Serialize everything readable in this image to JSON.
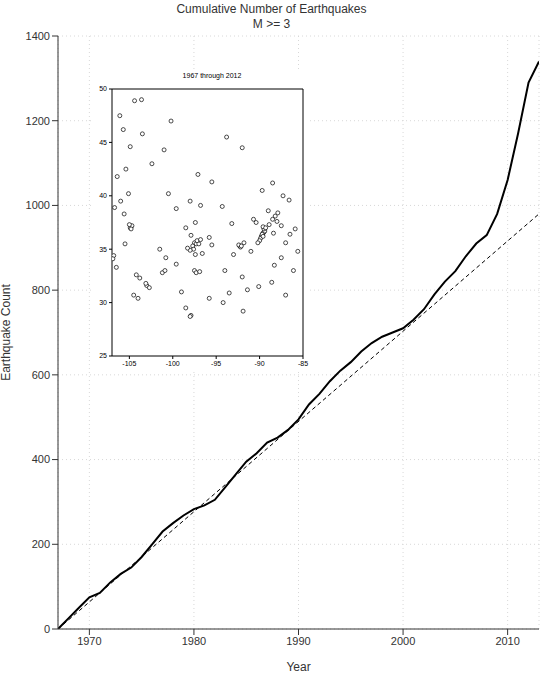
{
  "chart_data": [
    {
      "type": "line",
      "title": "Cumulative Number of Earthquakes",
      "subtitle": "M >= 3",
      "x_label": "Year",
      "y_label": "Earthquake Count",
      "xlim": [
        1967,
        2013
      ],
      "ylim": [
        0,
        1400
      ],
      "xticks": [
        1970,
        1980,
        1990,
        2000,
        2010
      ],
      "yticks": [
        0,
        200,
        400,
        600,
        800,
        1000,
        1200,
        1400
      ],
      "grid": true,
      "series": [
        {
          "color": "#000000",
          "line_style": "solid",
          "x": [
            1967,
            1968,
            1969,
            1970,
            1971,
            1972,
            1973,
            1974,
            1975,
            1976,
            1977,
            1978,
            1979,
            1980,
            1981,
            1982,
            1983,
            1984,
            1985,
            1986,
            1987,
            1988,
            1989,
            1990,
            1991,
            1992,
            1993,
            1994,
            1995,
            1996,
            1997,
            1998,
            1999,
            2000,
            2001,
            2002,
            2003,
            2004,
            2005,
            2006,
            2007,
            2008,
            2009,
            2010,
            2011,
            2012,
            2013
          ],
          "values": [
            0,
            25,
            50,
            75,
            85,
            110,
            130,
            145,
            170,
            200,
            230,
            250,
            268,
            283,
            292,
            305,
            335,
            365,
            395,
            415,
            440,
            452,
            470,
            495,
            530,
            555,
            585,
            610,
            630,
            655,
            675,
            690,
            700,
            710,
            730,
            755,
            790,
            820,
            845,
            880,
            910,
            930,
            980,
            1060,
            1170,
            1290,
            1340
          ]
        },
        {
          "color": "#000000",
          "line_style": "dashed",
          "x": [
            1967,
            2013
          ],
          "values": [
            0,
            980
          ]
        }
      ]
    },
    {
      "type": "scatter",
      "title": "1967 through 2012",
      "xlim": [
        -107,
        -85
      ],
      "ylim": [
        25,
        50
      ],
      "xticks": [
        -105,
        -100,
        -95,
        -90,
        -85
      ],
      "yticks": [
        25,
        30,
        35,
        40,
        45,
        50
      ],
      "marker": "circle",
      "color": "#000000",
      "x": [
        -89.6,
        -89.5,
        -89.7,
        -89.8,
        -89.9,
        -90.0,
        -89.4,
        -89.5,
        -89.6,
        -90.2,
        -89.7,
        -89.6,
        -89.3,
        -88.9,
        -88.5,
        -88.2,
        -87.9,
        -88.0,
        -90.4,
        -90.7,
        -89.0,
        -88.4,
        -87.5,
        -86.5,
        -87.0,
        -92.3,
        -92.2,
        -92.4,
        -92.1,
        -91.8,
        -93.0,
        -91.0,
        -97.5,
        -97.3,
        -97.0,
        -97.7,
        -97.6,
        -97.2,
        -96.8,
        -98.0,
        -98.3,
        -97.9,
        -96.6,
        -97.4,
        -95.5,
        -95.8,
        -97.5,
        -97.3,
        -96.9,
        -103.0,
        -103.1,
        -102.7,
        -101.2,
        -100.9,
        -104.5,
        -104.0,
        -98.5,
        -97.9,
        -98.0,
        -99.0,
        -95.8,
        -94.2,
        -99.6,
        -101.5,
        -100.8,
        -104.8,
        -104.9,
        -104.7,
        -104.8,
        -105.0,
        -106.8,
        -106.9,
        -106.5,
        -105.5,
        -103.8,
        -104.2,
        -106.0,
        -105.1,
        -106.7,
        -105.6,
        -106.4,
        -105.4,
        -104.9,
        -106.1,
        -105.7,
        -100.5,
        -99.6,
        -98.0,
        -96.8,
        -97.4,
        -98.5,
        -101.0,
        -102.4,
        -103.5,
        -100.2,
        -97.1,
        -95.5,
        -94.3,
        -93.2,
        -94.0,
        -92.0,
        -91.4,
        -93.5,
        -90.1,
        -88.6,
        -88.3,
        -87.5,
        -86.1,
        -85.6,
        -87.0,
        -91.9,
        -93.8,
        -88.5,
        -87.3,
        -86.6,
        -89.7,
        -92.0,
        -85.9,
        -104.4,
        -103.6
      ],
      "values": [
        36.5,
        36.6,
        36.3,
        36.2,
        36.0,
        35.8,
        36.7,
        36.9,
        37.1,
        35.6,
        36.4,
        36.2,
        37.0,
        37.3,
        37.8,
        38.1,
        38.4,
        37.6,
        37.5,
        37.8,
        38.6,
        36.5,
        37.2,
        36.4,
        35.6,
        35.3,
        35.2,
        35.4,
        35.3,
        35.6,
        34.5,
        34.8,
        35.6,
        35.5,
        35.5,
        35.3,
        35.0,
        35.8,
        35.9,
        34.9,
        35.1,
        36.3,
        34.6,
        34.5,
        35.4,
        36.1,
        33.0,
        32.8,
        32.9,
        31.6,
        31.8,
        31.4,
        32.8,
        33.0,
        30.7,
        30.4,
        29.5,
        28.8,
        28.7,
        31.0,
        30.4,
        30.0,
        33.6,
        35.0,
        34.2,
        37.1,
        37.0,
        37.2,
        36.9,
        37.3,
        34.4,
        34.1,
        33.3,
        35.5,
        32.3,
        32.6,
        39.5,
        40.2,
        38.9,
        38.3,
        41.8,
        42.5,
        44.6,
        47.5,
        46.2,
        40.2,
        38.8,
        39.5,
        39.1,
        37.5,
        37.0,
        44.3,
        43.0,
        45.8,
        47.0,
        42.0,
        41.3,
        39.0,
        37.4,
        33.0,
        32.4,
        31.2,
        30.9,
        31.5,
        31.9,
        33.5,
        34.2,
        33.0,
        34.8,
        30.7,
        29.2,
        45.5,
        41.2,
        40.0,
        39.6,
        40.5,
        44.5,
        36.9,
        48.9,
        49.0
      ]
    }
  ]
}
